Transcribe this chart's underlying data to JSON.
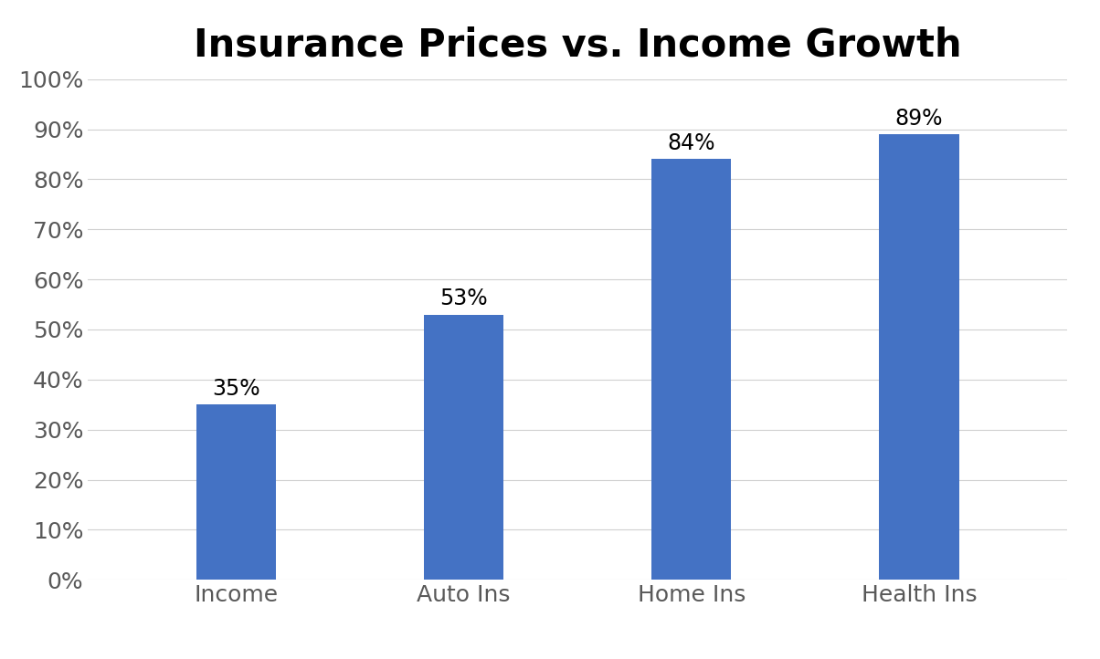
{
  "title": "Insurance Prices vs. Income Growth",
  "categories": [
    "Income",
    "Auto Ins",
    "Home Ins",
    "Health Ins"
  ],
  "values": [
    35,
    53,
    84,
    89
  ],
  "bar_color": "#4472C4",
  "ylim": [
    0,
    100
  ],
  "yticks": [
    0,
    10,
    20,
    30,
    40,
    50,
    60,
    70,
    80,
    90,
    100
  ],
  "title_fontsize": 30,
  "label_fontsize": 18,
  "tick_fontsize": 18,
  "annotation_fontsize": 17,
  "background_color": "#ffffff",
  "grid_color": "#d0d0d0",
  "tick_label_color": "#595959",
  "bar_width": 0.35,
  "figwidth": 12.04,
  "figheight": 7.22,
  "dpi": 100
}
